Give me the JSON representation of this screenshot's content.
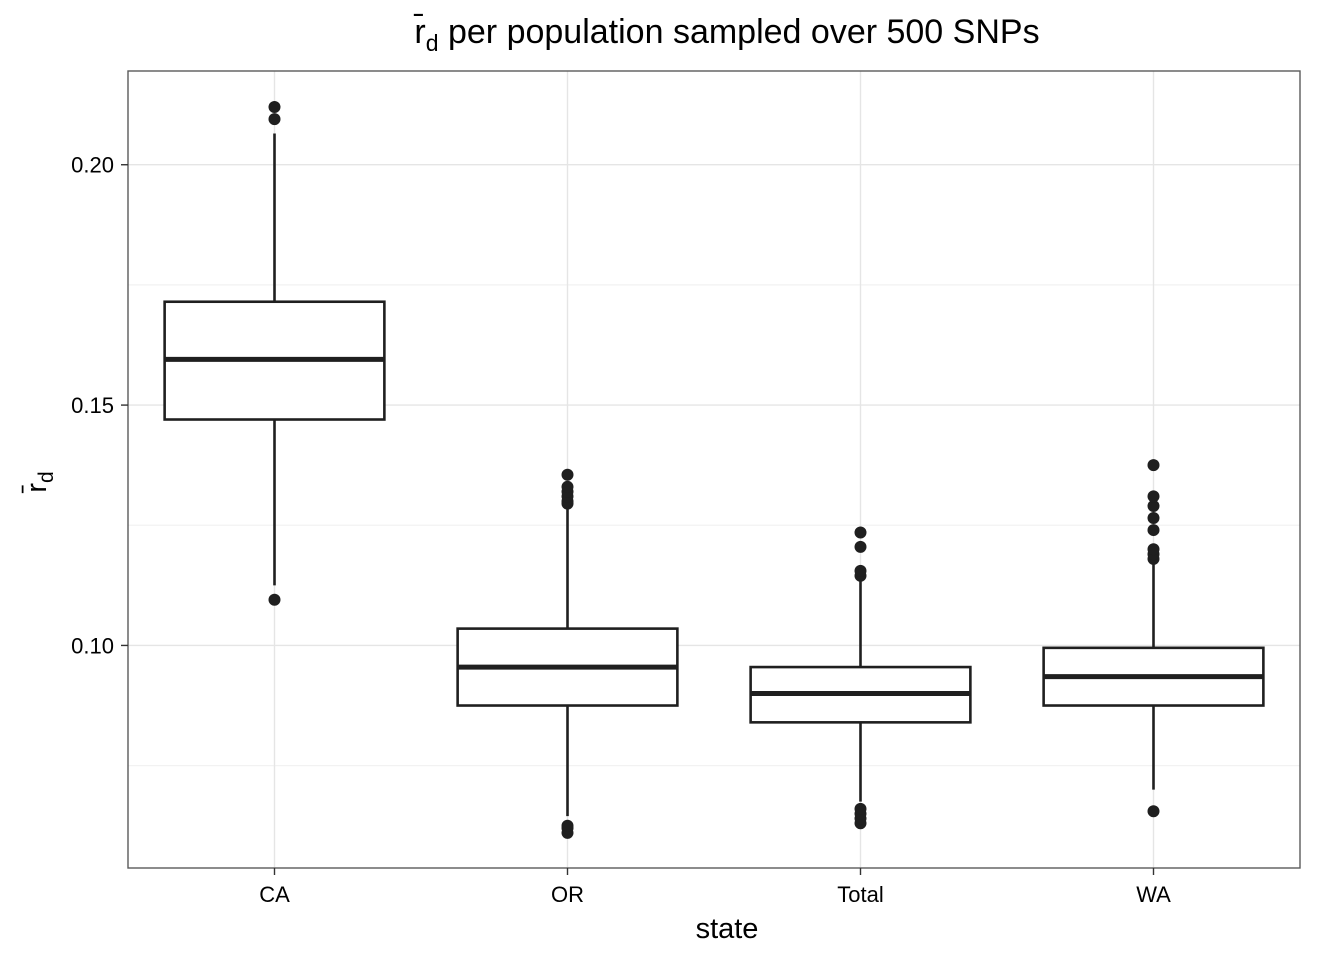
{
  "chart_data": {
    "type": "boxplot",
    "title": {
      "symbol": "r̄",
      "subscript": "d",
      "text": " per population sampled over 500 SNPs"
    },
    "xlabel": "state",
    "ylabel": {
      "symbol": "r̄",
      "subscript": "d"
    },
    "ylim": [
      0.0537,
      0.2195
    ],
    "yticks": [
      "0.10",
      "0.15",
      "0.20"
    ],
    "ytick_values": [
      0.1,
      0.15,
      0.2
    ],
    "minor_y": [
      0.075,
      0.125,
      0.175
    ],
    "grid": true,
    "theme": "bw",
    "categories": [
      "CA",
      "OR",
      "Total",
      "WA"
    ],
    "boxes": [
      {
        "name": "CA",
        "whisker_low": 0.1125,
        "q1": 0.147,
        "median": 0.1595,
        "q3": 0.1715,
        "whisker_high": 0.2065,
        "outliers": [
          0.1095,
          0.2095,
          0.212
        ]
      },
      {
        "name": "OR",
        "whisker_low": 0.0645,
        "q1": 0.0875,
        "median": 0.0955,
        "q3": 0.1035,
        "whisker_high": 0.1285,
        "outliers": [
          0.061,
          0.062,
          0.0625,
          0.1295,
          0.13,
          0.131,
          0.132,
          0.133,
          0.1355
        ]
      },
      {
        "name": "Total",
        "whisker_low": 0.0675,
        "q1": 0.084,
        "median": 0.09,
        "q3": 0.0955,
        "whisker_high": 0.1135,
        "outliers": [
          0.063,
          0.064,
          0.065,
          0.066,
          0.1145,
          0.1155,
          0.1205,
          0.1235
        ]
      },
      {
        "name": "WA",
        "whisker_low": 0.07,
        "q1": 0.0875,
        "median": 0.0935,
        "q3": 0.0995,
        "whisker_high": 0.1175,
        "outliers": [
          0.0655,
          0.118,
          0.119,
          0.12,
          0.124,
          0.1265,
          0.129,
          0.131,
          0.1375
        ]
      }
    ],
    "colors": {
      "box_stroke": "#1f1f1f",
      "point": "#1f1f1f",
      "grid_major": "#e5e5e5",
      "grid_minor": "#f2f2f2",
      "panel_border": "#5a5a5a"
    }
  }
}
